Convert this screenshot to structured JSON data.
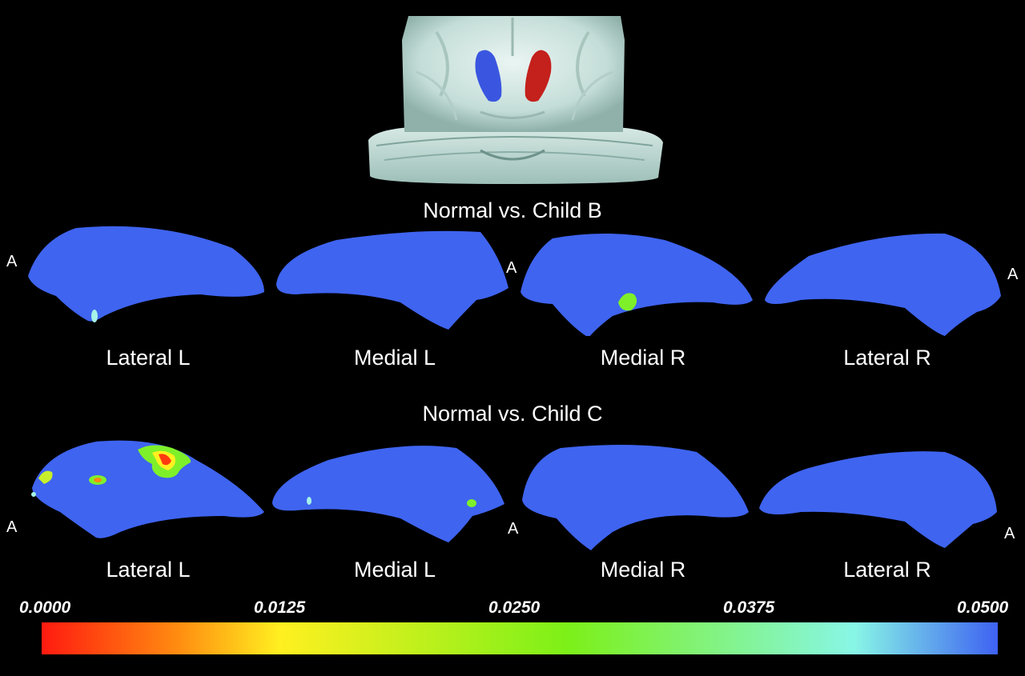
{
  "rows": [
    {
      "title": "Normal vs. Child B",
      "labels": [
        "Lateral L",
        "Medial L",
        "Medial R",
        "Lateral R"
      ]
    },
    {
      "title": "Normal vs. Child C",
      "labels": [
        "Lateral L",
        "Medial L",
        "Medial R",
        "Lateral R"
      ]
    }
  ],
  "anterior_marker": "A",
  "colorbar": {
    "ticks": [
      "0.0000",
      "0.0125",
      "0.0250",
      "0.0375",
      "0.0500"
    ],
    "colors": [
      "#ff1a10",
      "#ff8a10",
      "#fff020",
      "#7cf018",
      "#88f6e6",
      "#3e62f2"
    ]
  },
  "colors": {
    "surface": "#3f64f0",
    "left_caudate": "#3a56e0",
    "right_caudate": "#c4201c"
  }
}
